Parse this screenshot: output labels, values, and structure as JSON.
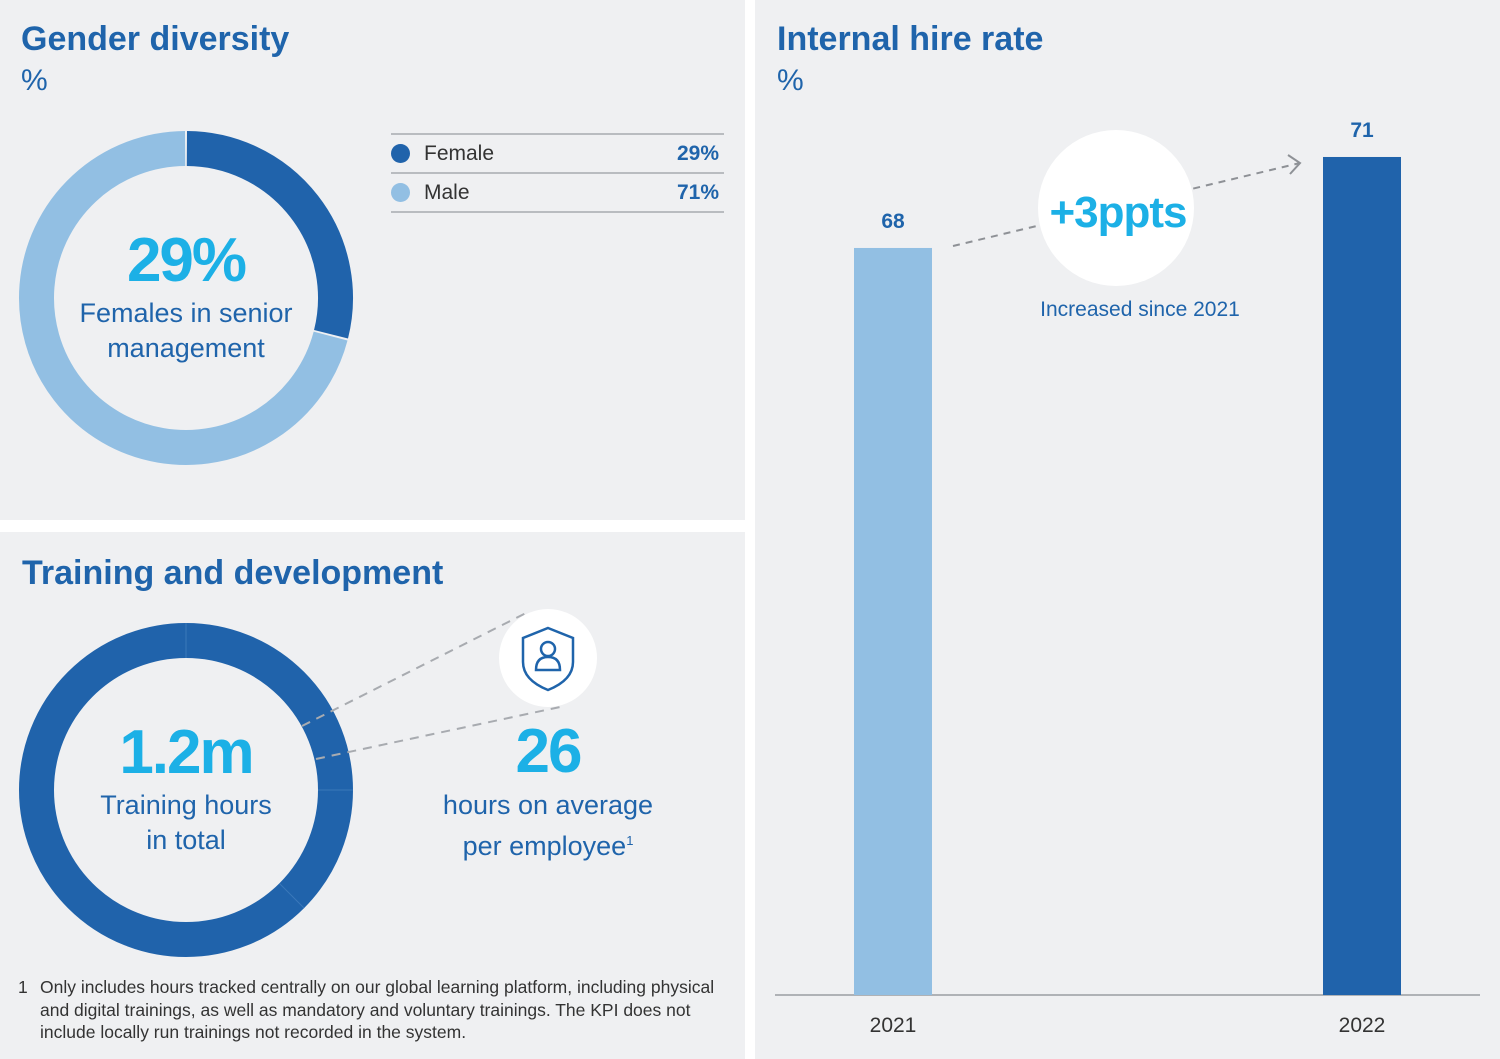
{
  "gender": {
    "title": "Gender diversity",
    "unit": "%",
    "center_value": "29%",
    "center_label_1": "Females in senior",
    "center_label_2": "management",
    "legend": [
      {
        "label": "Female",
        "value": "29%",
        "color": "#2063ab"
      },
      {
        "label": "Male",
        "value": "71%",
        "color": "#92bfe3"
      }
    ]
  },
  "training": {
    "title": "Training and development",
    "total_value": "1.2m",
    "total_label_1": "Training hours",
    "total_label_2": "in total",
    "avg_value": "26",
    "avg_label_1": "hours on average",
    "avg_label_2": "per employee",
    "avg_footnote_mark": "1",
    "icon": "shield-person-icon",
    "footnote_number": "1",
    "footnote_text": "Only includes hours tracked centrally on our global learning platform, including physical and digital trainings, as well as mandatory and voluntary trainings. The KPI does not include locally run trainings not recorded in the system."
  },
  "hire": {
    "callout_value": "+3ppts",
    "callout_label": "Increased since 2021"
  },
  "chart_data": [
    {
      "type": "pie",
      "title": "Gender diversity",
      "unit": "%",
      "categories": [
        "Female",
        "Male"
      ],
      "values": [
        29,
        71
      ],
      "colors": [
        "#2063ab",
        "#92bfe3"
      ],
      "legend": "top-right"
    },
    {
      "type": "bar",
      "title": "Internal hire rate",
      "ylabel": "%",
      "categories": [
        "2021",
        "2022"
      ],
      "values": [
        68,
        71
      ],
      "data_labels": [
        "68",
        "71"
      ],
      "colors": [
        "#92bfe3",
        "#2063ab"
      ],
      "grid": false
    }
  ]
}
